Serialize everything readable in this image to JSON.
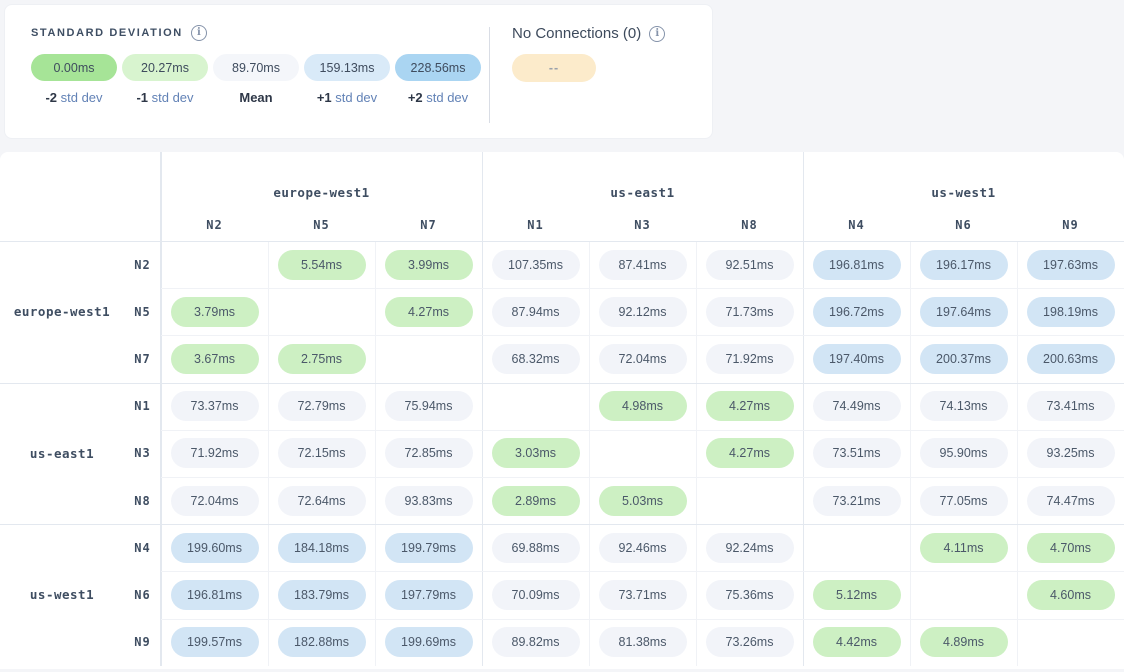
{
  "legend": {
    "standard_deviation": {
      "title": "STANDARD DEVIATION",
      "stops": [
        {
          "value": "0.00ms",
          "label_bold": "-2",
          "label_rest": "std dev",
          "color": "#a6e497"
        },
        {
          "value": "20.27ms",
          "label_bold": "-1",
          "label_rest": "std dev",
          "color": "#d8f4cf"
        },
        {
          "value": "89.70ms",
          "label_bold": "Mean",
          "label_rest": "",
          "color": "#f4f6fa"
        },
        {
          "value": "159.13ms",
          "label_bold": "+1",
          "label_rest": "std dev",
          "color": "#d9eaf8"
        },
        {
          "value": "228.56ms",
          "label_bold": "+2",
          "label_rest": "std dev",
          "color": "#aad5f2"
        }
      ]
    },
    "no_connections": {
      "title": "No Connections (0)",
      "pill_text": "--",
      "pill_color": "#fcebcb"
    }
  },
  "matrix": {
    "tone_colors": {
      "green": "#cdf0c3",
      "gray": "#f2f4f9",
      "blue": "#d2e5f5"
    },
    "column_groups": [
      {
        "region": "europe-west1",
        "nodes": [
          "N2",
          "N5",
          "N7"
        ]
      },
      {
        "region": "us-east1",
        "nodes": [
          "N1",
          "N3",
          "N8"
        ]
      },
      {
        "region": "us-west1",
        "nodes": [
          "N4",
          "N6",
          "N9"
        ]
      }
    ],
    "row_groups": [
      {
        "region": "europe-west1",
        "rows": [
          {
            "node": "N2",
            "cells": [
              null,
              {
                "v": "5.54ms",
                "tone": "green"
              },
              {
                "v": "3.99ms",
                "tone": "green"
              },
              {
                "v": "107.35ms",
                "tone": "gray"
              },
              {
                "v": "87.41ms",
                "tone": "gray"
              },
              {
                "v": "92.51ms",
                "tone": "gray"
              },
              {
                "v": "196.81ms",
                "tone": "blue"
              },
              {
                "v": "196.17ms",
                "tone": "blue"
              },
              {
                "v": "197.63ms",
                "tone": "blue"
              }
            ]
          },
          {
            "node": "N5",
            "cells": [
              {
                "v": "3.79ms",
                "tone": "green"
              },
              null,
              {
                "v": "4.27ms",
                "tone": "green"
              },
              {
                "v": "87.94ms",
                "tone": "gray"
              },
              {
                "v": "92.12ms",
                "tone": "gray"
              },
              {
                "v": "71.73ms",
                "tone": "gray"
              },
              {
                "v": "196.72ms",
                "tone": "blue"
              },
              {
                "v": "197.64ms",
                "tone": "blue"
              },
              {
                "v": "198.19ms",
                "tone": "blue"
              }
            ]
          },
          {
            "node": "N7",
            "cells": [
              {
                "v": "3.67ms",
                "tone": "green"
              },
              {
                "v": "2.75ms",
                "tone": "green"
              },
              null,
              {
                "v": "68.32ms",
                "tone": "gray"
              },
              {
                "v": "72.04ms",
                "tone": "gray"
              },
              {
                "v": "71.92ms",
                "tone": "gray"
              },
              {
                "v": "197.40ms",
                "tone": "blue"
              },
              {
                "v": "200.37ms",
                "tone": "blue"
              },
              {
                "v": "200.63ms",
                "tone": "blue"
              }
            ]
          }
        ]
      },
      {
        "region": "us-east1",
        "rows": [
          {
            "node": "N1",
            "cells": [
              {
                "v": "73.37ms",
                "tone": "gray"
              },
              {
                "v": "72.79ms",
                "tone": "gray"
              },
              {
                "v": "75.94ms",
                "tone": "gray"
              },
              null,
              {
                "v": "4.98ms",
                "tone": "green"
              },
              {
                "v": "4.27ms",
                "tone": "green"
              },
              {
                "v": "74.49ms",
                "tone": "gray"
              },
              {
                "v": "74.13ms",
                "tone": "gray"
              },
              {
                "v": "73.41ms",
                "tone": "gray"
              }
            ]
          },
          {
            "node": "N3",
            "cells": [
              {
                "v": "71.92ms",
                "tone": "gray"
              },
              {
                "v": "72.15ms",
                "tone": "gray"
              },
              {
                "v": "72.85ms",
                "tone": "gray"
              },
              {
                "v": "3.03ms",
                "tone": "green"
              },
              null,
              {
                "v": "4.27ms",
                "tone": "green"
              },
              {
                "v": "73.51ms",
                "tone": "gray"
              },
              {
                "v": "95.90ms",
                "tone": "gray"
              },
              {
                "v": "93.25ms",
                "tone": "gray"
              }
            ]
          },
          {
            "node": "N8",
            "cells": [
              {
                "v": "72.04ms",
                "tone": "gray"
              },
              {
                "v": "72.64ms",
                "tone": "gray"
              },
              {
                "v": "93.83ms",
                "tone": "gray"
              },
              {
                "v": "2.89ms",
                "tone": "green"
              },
              {
                "v": "5.03ms",
                "tone": "green"
              },
              null,
              {
                "v": "73.21ms",
                "tone": "gray"
              },
              {
                "v": "77.05ms",
                "tone": "gray"
              },
              {
                "v": "74.47ms",
                "tone": "gray"
              }
            ]
          }
        ]
      },
      {
        "region": "us-west1",
        "rows": [
          {
            "node": "N4",
            "cells": [
              {
                "v": "199.60ms",
                "tone": "blue"
              },
              {
                "v": "184.18ms",
                "tone": "blue"
              },
              {
                "v": "199.79ms",
                "tone": "blue"
              },
              {
                "v": "69.88ms",
                "tone": "gray"
              },
              {
                "v": "92.46ms",
                "tone": "gray"
              },
              {
                "v": "92.24ms",
                "tone": "gray"
              },
              null,
              {
                "v": "4.11ms",
                "tone": "green"
              },
              {
                "v": "4.70ms",
                "tone": "green"
              }
            ]
          },
          {
            "node": "N6",
            "cells": [
              {
                "v": "196.81ms",
                "tone": "blue"
              },
              {
                "v": "183.79ms",
                "tone": "blue"
              },
              {
                "v": "197.79ms",
                "tone": "blue"
              },
              {
                "v": "70.09ms",
                "tone": "gray"
              },
              {
                "v": "73.71ms",
                "tone": "gray"
              },
              {
                "v": "75.36ms",
                "tone": "gray"
              },
              {
                "v": "5.12ms",
                "tone": "green"
              },
              null,
              {
                "v": "4.60ms",
                "tone": "green"
              }
            ]
          },
          {
            "node": "N9",
            "cells": [
              {
                "v": "199.57ms",
                "tone": "blue"
              },
              {
                "v": "182.88ms",
                "tone": "blue"
              },
              {
                "v": "199.69ms",
                "tone": "blue"
              },
              {
                "v": "89.82ms",
                "tone": "gray"
              },
              {
                "v": "81.38ms",
                "tone": "gray"
              },
              {
                "v": "73.26ms",
                "tone": "gray"
              },
              {
                "v": "4.42ms",
                "tone": "green"
              },
              {
                "v": "4.89ms",
                "tone": "green"
              },
              null
            ]
          }
        ]
      }
    ]
  }
}
